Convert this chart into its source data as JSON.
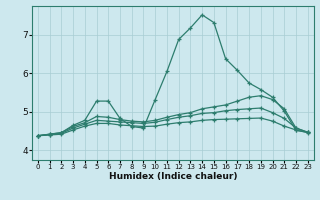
{
  "xlabel": "Humidex (Indice chaleur)",
  "background_color": "#cde8ee",
  "grid_color": "#a8cdd4",
  "line_color": "#2d7d6e",
  "xlim": [
    -0.5,
    23.5
  ],
  "ylim": [
    3.75,
    7.75
  ],
  "xticks": [
    0,
    1,
    2,
    3,
    4,
    5,
    6,
    7,
    8,
    9,
    10,
    11,
    12,
    13,
    14,
    15,
    16,
    17,
    18,
    19,
    20,
    21,
    22,
    23
  ],
  "yticks": [
    4,
    5,
    6,
    7
  ],
  "lines": [
    {
      "x": [
        0,
        1,
        2,
        3,
        4,
        5,
        6,
        7,
        8,
        9,
        10,
        11,
        12,
        13,
        14,
        15,
        16,
        17,
        18,
        19,
        20,
        21,
        22,
        23
      ],
      "y": [
        4.38,
        4.42,
        4.46,
        4.65,
        4.78,
        5.28,
        5.28,
        4.83,
        4.62,
        4.58,
        5.32,
        6.05,
        6.88,
        7.18,
        7.52,
        7.32,
        6.38,
        6.08,
        5.75,
        5.58,
        5.38,
        5.02,
        4.52,
        4.47
      ]
    },
    {
      "x": [
        0,
        1,
        2,
        3,
        4,
        5,
        6,
        7,
        8,
        9,
        10,
        11,
        12,
        13,
        14,
        15,
        16,
        17,
        18,
        19,
        20,
        21,
        22,
        23
      ],
      "y": [
        4.38,
        4.42,
        4.46,
        4.62,
        4.72,
        4.88,
        4.86,
        4.8,
        4.76,
        4.74,
        4.78,
        4.86,
        4.93,
        4.98,
        5.08,
        5.13,
        5.18,
        5.28,
        5.38,
        5.42,
        5.32,
        5.08,
        4.58,
        4.47
      ]
    },
    {
      "x": [
        0,
        1,
        2,
        3,
        4,
        5,
        6,
        7,
        8,
        9,
        10,
        11,
        12,
        13,
        14,
        15,
        16,
        17,
        18,
        19,
        20,
        21,
        22,
        23
      ],
      "y": [
        4.38,
        4.41,
        4.44,
        4.58,
        4.68,
        4.78,
        4.76,
        4.74,
        4.72,
        4.7,
        4.73,
        4.8,
        4.86,
        4.9,
        4.96,
        4.98,
        5.03,
        5.06,
        5.08,
        5.1,
        4.98,
        4.83,
        4.58,
        4.47
      ]
    },
    {
      "x": [
        0,
        1,
        2,
        3,
        4,
        5,
        6,
        7,
        8,
        9,
        10,
        11,
        12,
        13,
        14,
        15,
        16,
        17,
        18,
        19,
        20,
        21,
        22,
        23
      ],
      "y": [
        4.38,
        4.4,
        4.42,
        4.53,
        4.63,
        4.7,
        4.7,
        4.66,
        4.64,
        4.62,
        4.63,
        4.68,
        4.72,
        4.74,
        4.78,
        4.8,
        4.81,
        4.82,
        4.83,
        4.84,
        4.76,
        4.63,
        4.53,
        4.46
      ]
    }
  ]
}
